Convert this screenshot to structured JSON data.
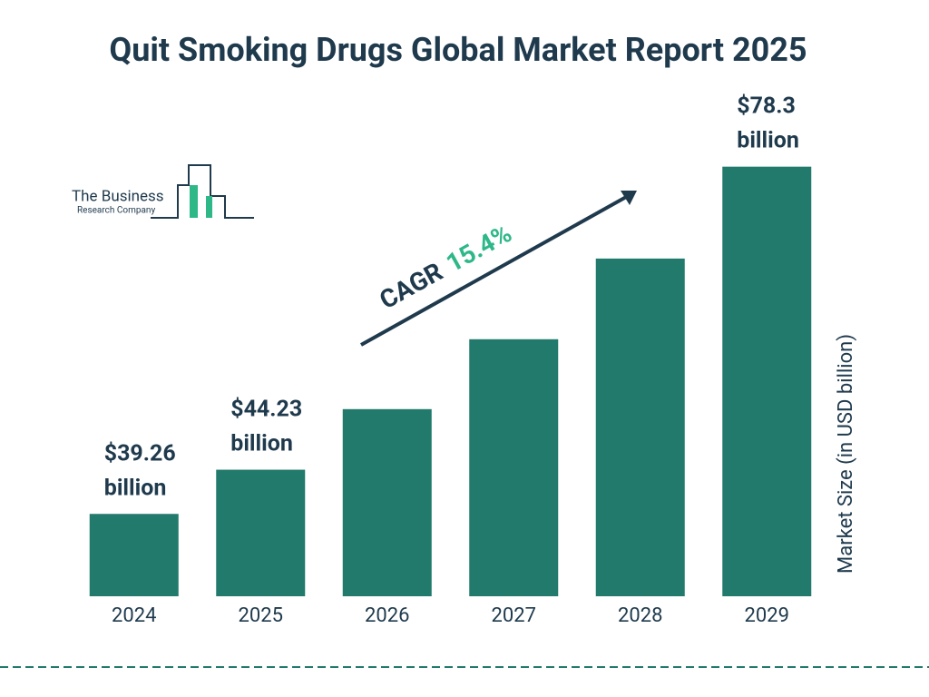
{
  "chart_data": {
    "type": "bar",
    "title": "Quit Smoking Drugs Global Market Report 2025",
    "y_axis_label": "Market Size (in USD billion)",
    "categories": [
      "2024",
      "2025",
      "2026",
      "2027",
      "2028",
      "2029"
    ],
    "values": [
      39.26,
      44.23,
      51.04,
      58.9,
      67.97,
      78.3
    ],
    "value_labels": [
      "$39.26 billion",
      "$44.23 billion",
      null,
      null,
      null,
      "$78.3 billion"
    ],
    "color": "#217a6b",
    "ylim": [
      30,
      80
    ],
    "annotation": {
      "label": "CAGR",
      "value": "15.4%"
    },
    "logo": {
      "line1": "The Business",
      "line2": "Research Company"
    }
  }
}
